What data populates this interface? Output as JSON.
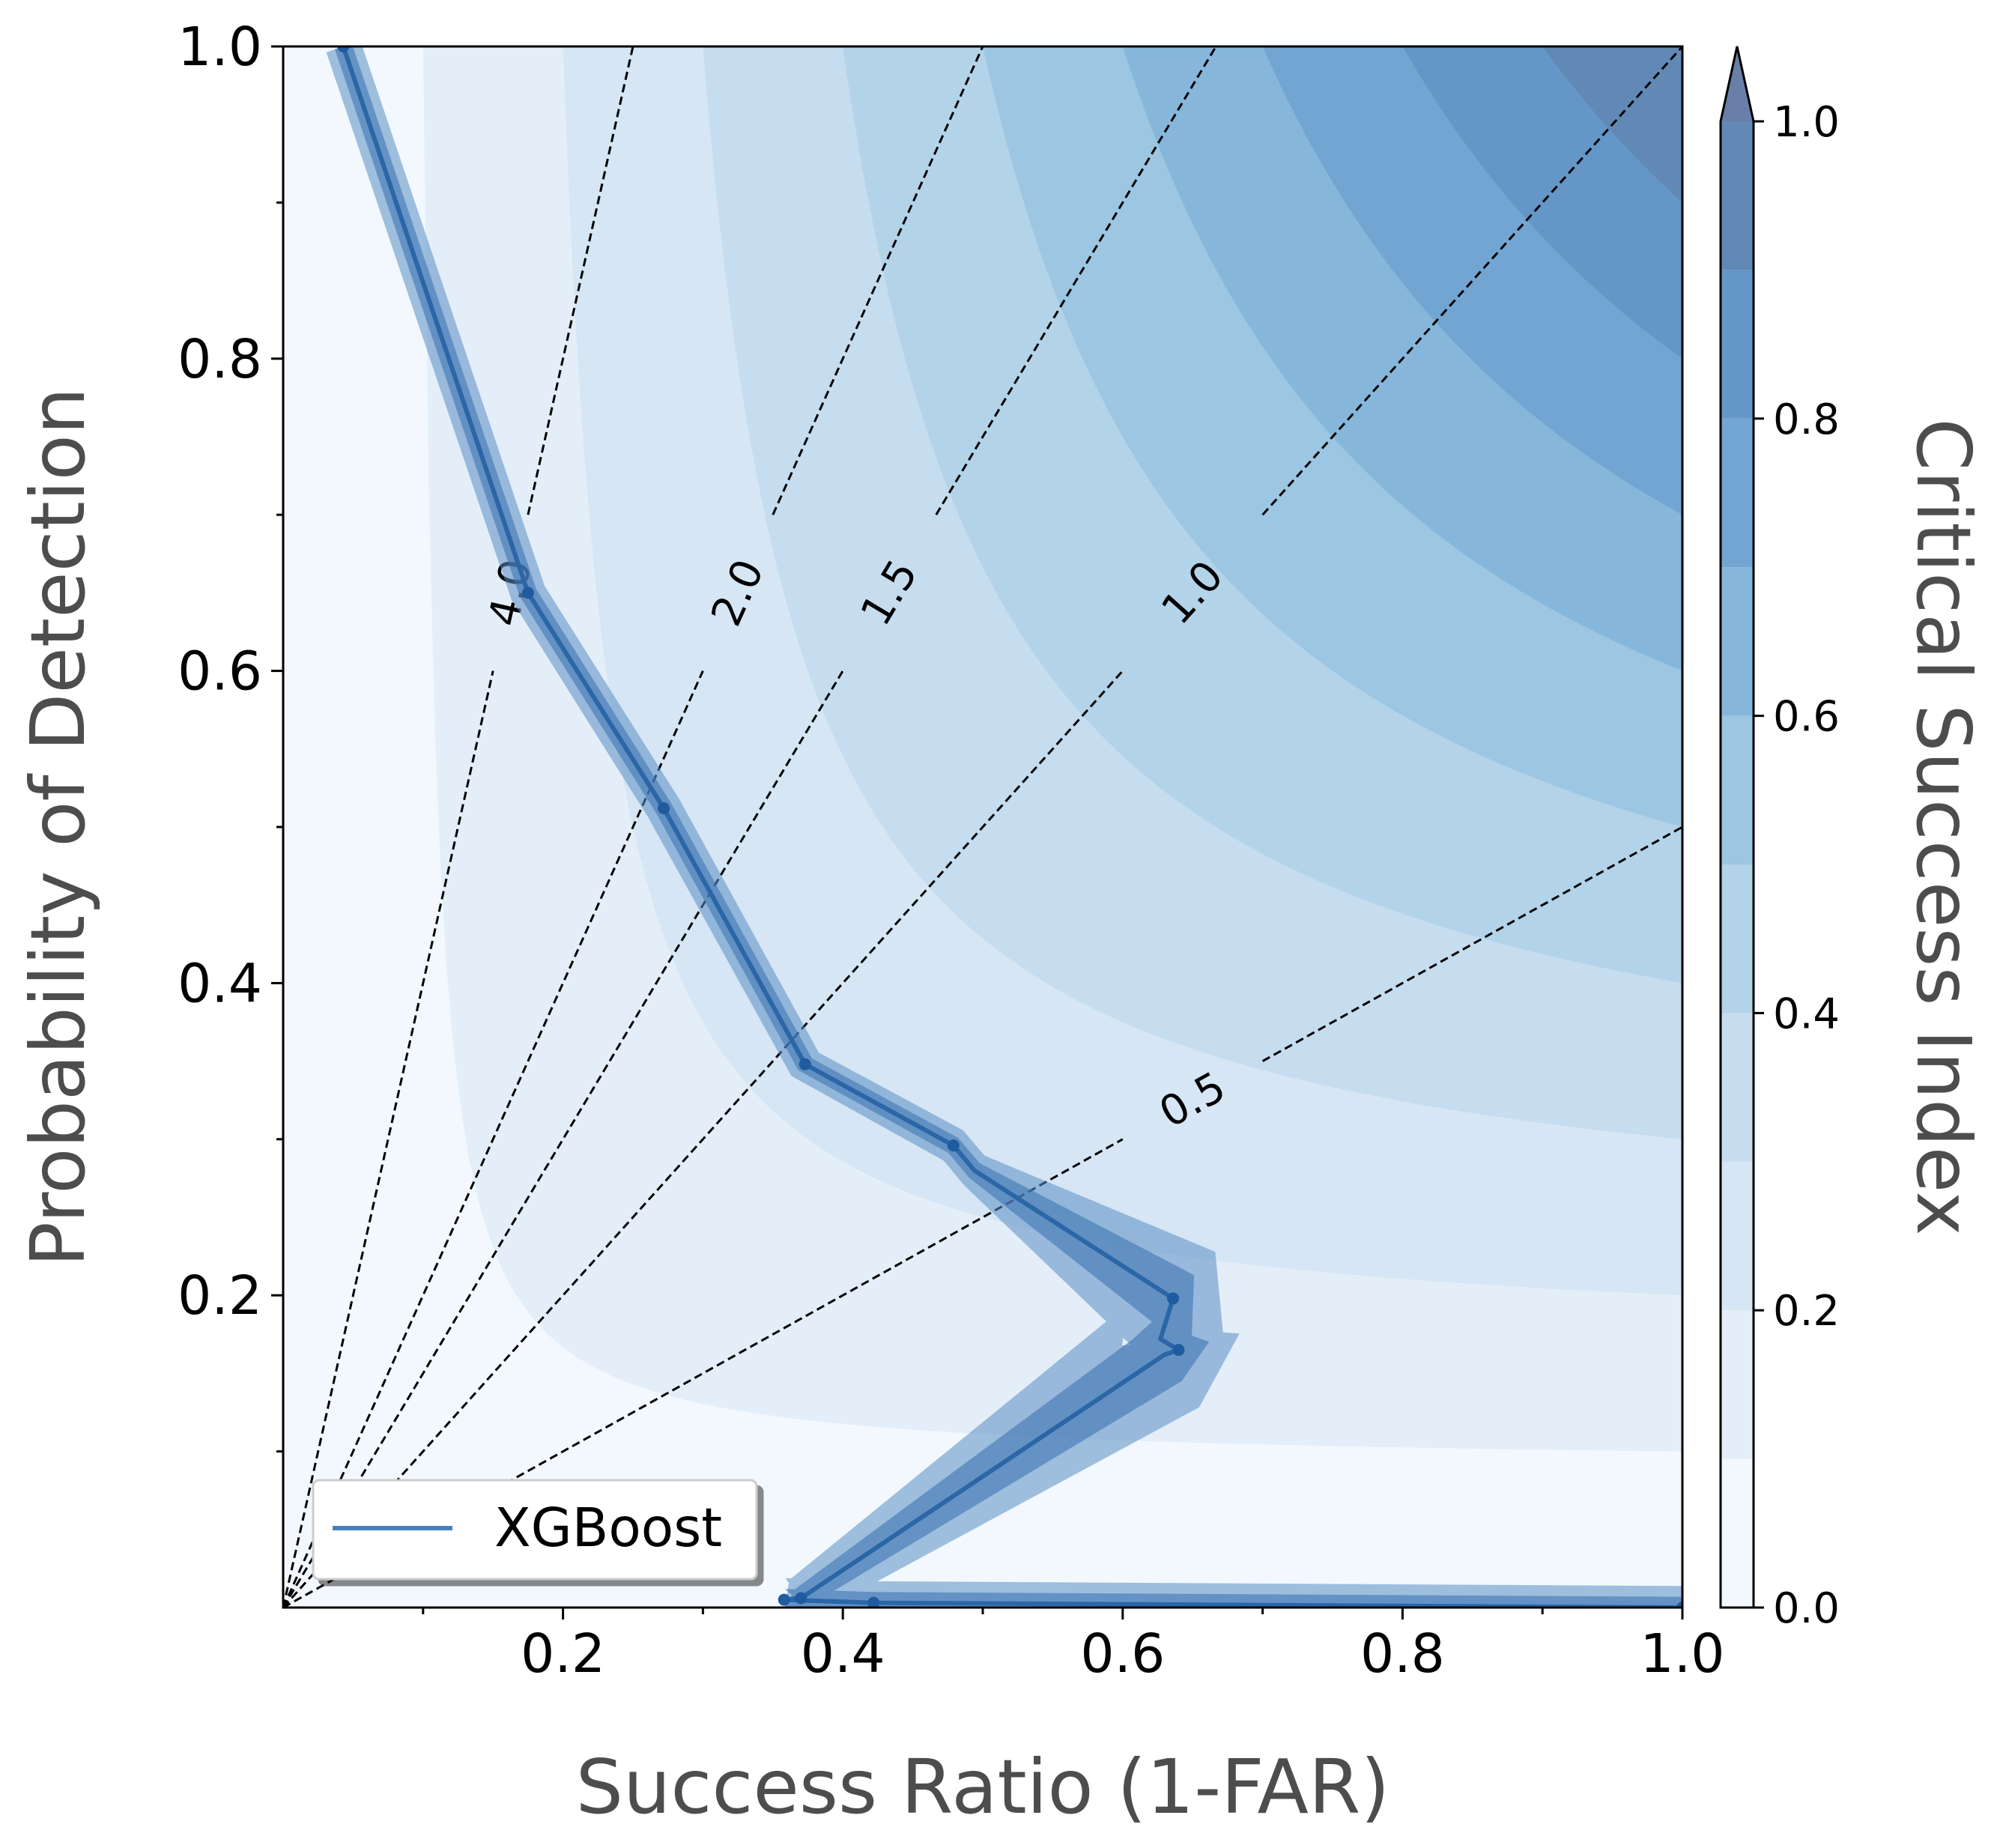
{
  "chart_data": {
    "type": "line",
    "xlabel": "Success Ratio (1-FAR)",
    "ylabel": "Probability of Detection",
    "xlim": [
      0,
      1
    ],
    "ylim": [
      0,
      1
    ],
    "x_ticks": [
      "0.2",
      "0.4",
      "0.6",
      "0.8",
      "1.0"
    ],
    "y_ticks": [
      "0.2",
      "0.4",
      "0.6",
      "0.8",
      "1.0"
    ],
    "colorbar": {
      "label": "Critical Success Index",
      "ticks": [
        "0.0",
        "0.2",
        "0.4",
        "0.6",
        "0.8",
        "1.0"
      ],
      "levels": [
        0.0,
        0.1,
        0.2,
        0.3,
        0.4,
        0.5,
        0.6,
        0.7,
        0.8,
        0.9,
        1.0
      ],
      "colors": [
        "#f2f8fd",
        "#e4eef8",
        "#d6e6f4",
        "#c6dcef",
        "#b3d3e8",
        "#9cc6e2",
        "#86b7db",
        "#73a5d2",
        "#6496c7",
        "#6289b5"
      ],
      "extend": "max"
    },
    "bias_lines": [
      {
        "bias": 0.5,
        "label": "0.5"
      },
      {
        "bias": 1.0,
        "label": "1.0"
      },
      {
        "bias": 1.5,
        "label": "1.5"
      },
      {
        "bias": 2.0,
        "label": "2.0"
      },
      {
        "bias": 4.0,
        "label": "4.0"
      }
    ],
    "series": [
      {
        "name": "XGBoost",
        "color": "#2b66a7",
        "x": [
          0.043,
          0.175,
          0.272,
          0.373,
          0.479,
          0.494,
          0.636,
          0.627,
          0.64,
          0.63,
          0.37,
          0.358,
          0.422,
          1.0
        ],
        "y": [
          1.0,
          0.65,
          0.512,
          0.348,
          0.296,
          0.28,
          0.198,
          0.172,
          0.165,
          0.162,
          0.006,
          0.005,
          0.003,
          0.0
        ]
      }
    ],
    "legend": {
      "position": "lower-left"
    },
    "grid": false
  }
}
